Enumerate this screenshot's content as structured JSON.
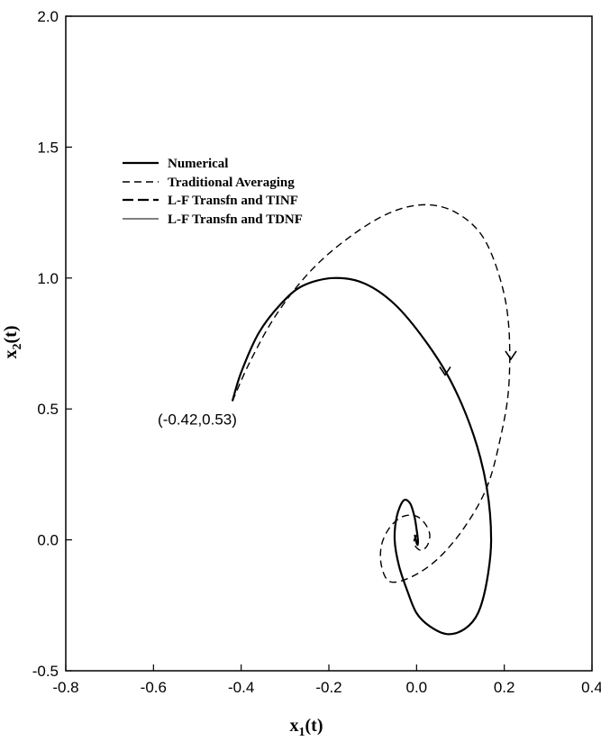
{
  "chart_data": {
    "type": "line",
    "title": "",
    "xlabel": "x1(t)",
    "ylabel": "x2(t)",
    "xlim": [
      -0.8,
      0.4
    ],
    "ylim": [
      -0.5,
      2.0
    ],
    "xticks": [
      -0.8,
      -0.6,
      -0.4,
      -0.2,
      0.0,
      0.2,
      0.4
    ],
    "yticks": [
      -0.5,
      0.0,
      0.5,
      1.0,
      1.5,
      2.0
    ],
    "xtick_labels": [
      "-0.8",
      "-0.6",
      "-0.4",
      "-0.2",
      "0.0",
      "0.2",
      "0.4"
    ],
    "ytick_labels": [
      "-0.5",
      "0.0",
      "0.5",
      "1.0",
      "1.5",
      "2.0"
    ],
    "grid": false,
    "legend_position": "top-left",
    "series": [
      {
        "name": "Numerical",
        "style": "solid-thick",
        "x": [
          -0.42,
          -0.4,
          -0.36,
          -0.31,
          -0.26,
          -0.19,
          -0.12,
          -0.05,
          0.02,
          0.08,
          0.13,
          0.16,
          0.17,
          0.16,
          0.14,
          0.11,
          0.07,
          0.03,
          0.0,
          -0.02,
          -0.04,
          -0.05,
          -0.045,
          -0.03,
          -0.015,
          -0.005,
          0.0,
          0.003,
          0.002,
          -0.002,
          -0.004
        ],
        "y": [
          0.53,
          0.64,
          0.79,
          0.9,
          0.97,
          1.0,
          0.98,
          0.9,
          0.76,
          0.6,
          0.4,
          0.2,
          0.0,
          -0.16,
          -0.28,
          -0.34,
          -0.36,
          -0.33,
          -0.28,
          -0.2,
          -0.1,
          0.0,
          0.09,
          0.15,
          0.14,
          0.09,
          0.04,
          0.0,
          -0.02,
          0.0,
          0.02
        ]
      },
      {
        "name": "Traditional Averaging",
        "style": "dashed",
        "x": [
          -0.42,
          -0.38,
          -0.32,
          -0.24,
          -0.15,
          -0.06,
          0.02,
          0.09,
          0.15,
          0.19,
          0.21,
          0.21,
          0.19,
          0.16,
          0.11,
          0.05,
          -0.01,
          -0.06,
          -0.08,
          -0.08,
          -0.06,
          -0.03,
          0.0,
          0.02,
          0.03,
          0.025,
          0.012,
          0.0,
          -0.006,
          -0.003,
          0.004
        ],
        "y": [
          0.53,
          0.68,
          0.86,
          1.03,
          1.16,
          1.25,
          1.28,
          1.25,
          1.16,
          1.0,
          0.82,
          0.58,
          0.38,
          0.2,
          0.05,
          -0.07,
          -0.14,
          -0.16,
          -0.1,
          -0.02,
          0.05,
          0.09,
          0.09,
          0.06,
          0.02,
          -0.02,
          -0.04,
          -0.03,
          -0.01,
          0.01,
          0.02
        ]
      },
      {
        "name": "L-F Transfn  and TINF",
        "style": "dash-long",
        "x": [],
        "y": []
      },
      {
        "name": "L-F Transfn  and TDNF",
        "style": "solid-thin",
        "x": [],
        "y": []
      }
    ],
    "annotations": [
      {
        "text": "(-0.42,0.53)",
        "x": -0.5,
        "y": 0.44
      }
    ],
    "arrows": [
      {
        "series": 0,
        "x": 0.065,
        "y": 0.63
      },
      {
        "series": 1,
        "x": 0.215,
        "y": 0.69
      }
    ]
  }
}
